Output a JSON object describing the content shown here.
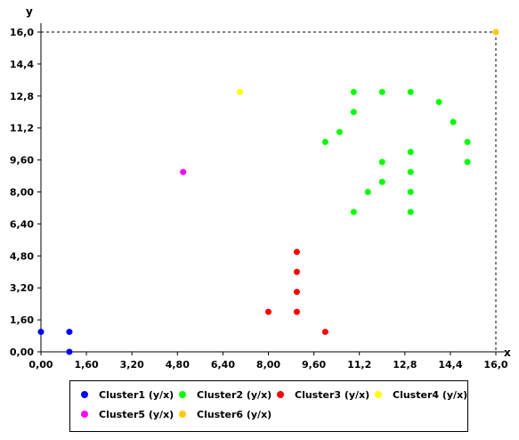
{
  "chart_data": {
    "type": "scatter",
    "xlabel": "x",
    "ylabel": "y",
    "xlim": [
      0,
      16
    ],
    "ylim": [
      0,
      16
    ],
    "x_ticks": [
      "0,00",
      "1,60",
      "3,20",
      "4,80",
      "6,40",
      "8,00",
      "9,60",
      "11,2",
      "12,8",
      "14,4",
      "16,0"
    ],
    "y_ticks": [
      "0,00",
      "1,60",
      "3,20",
      "4,80",
      "6,40",
      "8,00",
      "9,60",
      "11,2",
      "12,8",
      "14,4",
      "16,0"
    ],
    "grid": false,
    "legend_position": "bottom",
    "series": [
      {
        "name": "Cluster1 (y/x)",
        "color": "#0000ff",
        "points": [
          [
            0,
            1
          ],
          [
            1,
            1
          ],
          [
            1,
            0
          ]
        ]
      },
      {
        "name": "Cluster2 (y/x)",
        "color": "#00ff00",
        "points": [
          [
            11,
            13
          ],
          [
            12,
            13
          ],
          [
            13,
            13
          ],
          [
            14,
            12.5
          ],
          [
            14.5,
            11.5
          ],
          [
            11,
            12
          ],
          [
            10.5,
            11
          ],
          [
            10,
            10.5
          ],
          [
            15,
            10.5
          ],
          [
            15,
            9.5
          ],
          [
            13,
            10
          ],
          [
            12,
            9.5
          ],
          [
            13,
            9
          ],
          [
            12,
            8.5
          ],
          [
            11.5,
            8
          ],
          [
            13,
            8
          ],
          [
            11,
            7
          ],
          [
            13,
            7
          ]
        ]
      },
      {
        "name": "Cluster3 (y/x)",
        "color": "#ff0000",
        "points": [
          [
            9,
            5
          ],
          [
            9,
            4
          ],
          [
            9,
            3
          ],
          [
            8,
            2
          ],
          [
            9,
            2
          ],
          [
            10,
            1
          ]
        ]
      },
      {
        "name": "Cluster4 (y/x)",
        "color": "#ffff00",
        "points": [
          [
            7,
            13
          ]
        ]
      },
      {
        "name": "Cluster5 (y/x)",
        "color": "#ff00ff",
        "points": [
          [
            5,
            9
          ]
        ]
      },
      {
        "name": "Cluster6 (y/x)",
        "color": "#ffc800",
        "points": [
          [
            16,
            16
          ]
        ]
      }
    ]
  }
}
